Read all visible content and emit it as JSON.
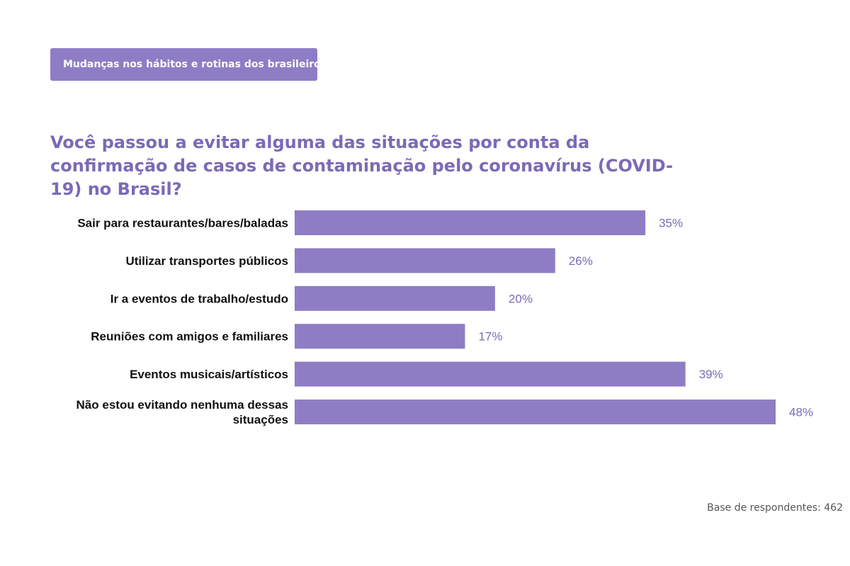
{
  "header": {
    "tag_label": "Mudanças nos hábitos e rotinas dos brasileiros"
  },
  "footer": {
    "base": "Base de respondentes: 462"
  },
  "colors": {
    "accent": "#8e7dc5",
    "title": "#7b6ab6"
  },
  "chart_data": {
    "type": "bar",
    "orientation": "horizontal",
    "title": "Você passou a evitar alguma das situações por conta da confirmação de casos de contaminação pelo coronavírus (COVID-19) no Brasil?",
    "categories": [
      [
        "Sair para restaurantes/bares/baladas"
      ],
      [
        "Utilizar transportes públicos"
      ],
      [
        "Ir a eventos de trabalho/estudo"
      ],
      [
        "Reuniões com amigos e familiares"
      ],
      [
        "Eventos musicais/artísticos"
      ],
      [
        "Não estou evitando nenhuma dessas",
        "situações"
      ]
    ],
    "values": [
      35,
      26,
      20,
      17,
      39,
      48
    ],
    "value_labels": [
      "35%",
      "26%",
      "20%",
      "17%",
      "39%",
      "48%"
    ],
    "unit": "%",
    "xlim": [
      0,
      48
    ],
    "grid": false,
    "legend": "none"
  }
}
